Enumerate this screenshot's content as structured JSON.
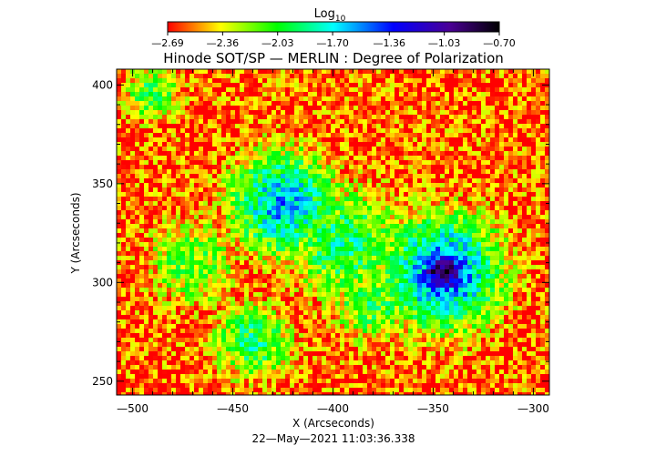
{
  "chart_data": {
    "type": "heatmap",
    "title": "Hinode SOT/SP — MERLIN : Degree of Polarization",
    "xlabel": "X (Arcseconds)",
    "ylabel": "Y (Arcseconds)",
    "timestamp": "22—May—2021 11:03:36.338",
    "xlim": [
      -508,
      -292
    ],
    "ylim": [
      243,
      408
    ],
    "x_ticks": [
      -500,
      -450,
      -400,
      -350,
      -300
    ],
    "x_tick_labels": [
      "—500",
      "—450",
      "—400",
      "—350",
      "—300"
    ],
    "y_ticks": [
      250,
      300,
      350,
      400
    ],
    "y_tick_labels": [
      "250",
      "300",
      "350",
      "400"
    ],
    "colorbar": {
      "title_base": "Log",
      "title_sub": "10",
      "min": -2.69,
      "max": -0.7,
      "ticks": [
        -2.69,
        -2.36,
        -2.03,
        -1.7,
        -1.36,
        -1.03,
        -0.7
      ],
      "tick_labels": [
        "—2.69",
        "—2.36",
        "—2.03",
        "—1.70",
        "—1.36",
        "—1.03",
        "—0.70"
      ],
      "placement": "top",
      "colors": [
        "#ff0000",
        "#ffff00",
        "#00ff00",
        "#00ffff",
        "#0000ff",
        "#4a0096",
        "#000000"
      ]
    },
    "features": [
      {
        "x": -345,
        "y": 305,
        "value": -0.8,
        "spread": 14
      },
      {
        "x": -345,
        "y": 305,
        "value": -1.4,
        "spread": 30
      },
      {
        "x": -425,
        "y": 340,
        "value": -1.6,
        "spread": 28
      },
      {
        "x": -395,
        "y": 320,
        "value": -1.9,
        "spread": 30
      },
      {
        "x": -440,
        "y": 270,
        "value": -1.9,
        "spread": 20
      },
      {
        "x": -380,
        "y": 290,
        "value": -2.0,
        "spread": 22
      },
      {
        "x": -470,
        "y": 310,
        "value": -2.1,
        "spread": 25
      },
      {
        "x": -490,
        "y": 395,
        "value": -2.0,
        "spread": 15
      }
    ]
  }
}
